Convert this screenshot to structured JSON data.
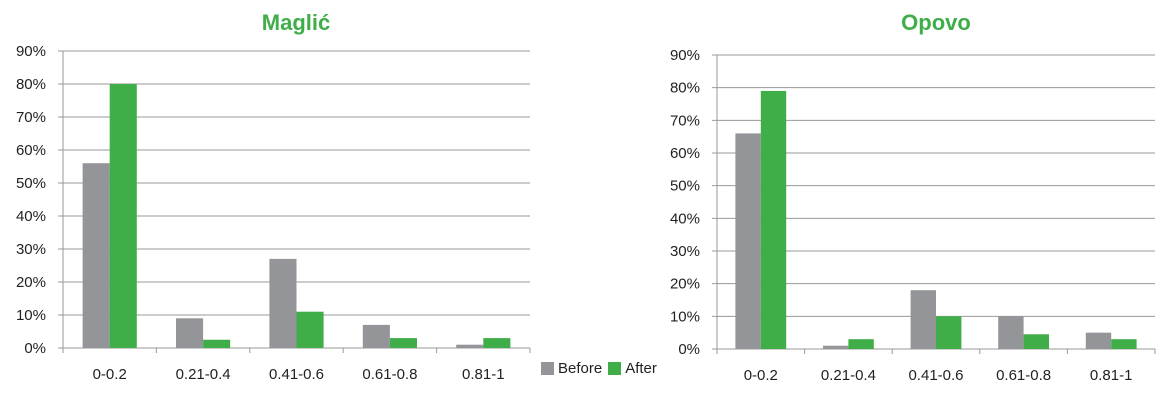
{
  "colors": {
    "before": "#939598",
    "after": "#3fae49",
    "title": "#3fae49",
    "grid": "#9a9a9a",
    "axis_text": "#222222"
  },
  "legend": {
    "before_label": "Before",
    "after_label": "After"
  },
  "chart_data": [
    {
      "type": "bar",
      "title": "Maglić",
      "categories": [
        "0-0.2",
        "0.21-0.4",
        "0.41-0.6",
        "0.61-0.8",
        "0.81-1"
      ],
      "series": [
        {
          "name": "Before",
          "values": [
            56,
            9,
            27,
            7,
            1
          ]
        },
        {
          "name": "After",
          "values": [
            80,
            2.5,
            11,
            3,
            3
          ]
        }
      ],
      "ylim": [
        0,
        90
      ],
      "yticks": [
        "0%",
        "10%",
        "20%",
        "30%",
        "40%",
        "50%",
        "60%",
        "70%",
        "80%",
        "90%"
      ],
      "grid": true
    },
    {
      "type": "bar",
      "title": "Opovo",
      "categories": [
        "0-0.2",
        "0.21-0.4",
        "0.41-0.6",
        "0.61-0.8",
        "0.81-1"
      ],
      "series": [
        {
          "name": "Before",
          "values": [
            66,
            1,
            18,
            10,
            5
          ]
        },
        {
          "name": "After",
          "values": [
            79,
            3,
            10,
            4.5,
            3
          ]
        }
      ],
      "ylim": [
        0,
        90
      ],
      "yticks": [
        "0%",
        "10%",
        "20%",
        "30%",
        "40%",
        "50%",
        "60%",
        "70%",
        "80%",
        "90%"
      ],
      "grid": true
    }
  ]
}
